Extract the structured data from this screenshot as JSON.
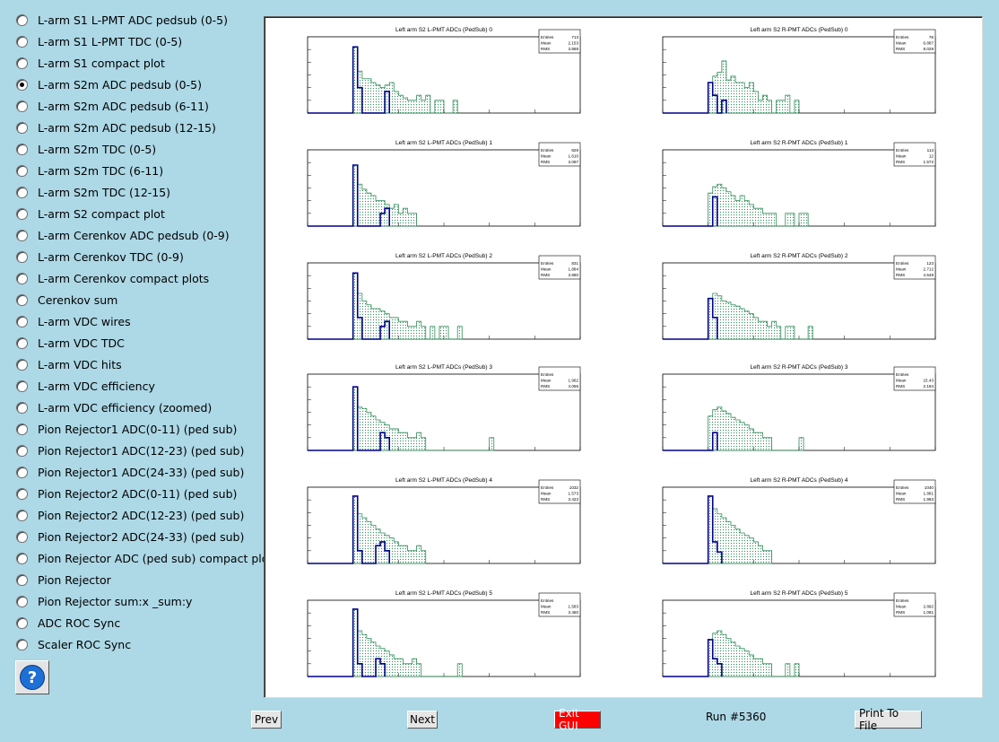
{
  "radio_options": [
    {
      "label": "L-arm S1 L-PMT ADC pedsub (0-5)",
      "checked": false
    },
    {
      "label": "L-arm S1 L-PMT TDC (0-5)",
      "checked": false
    },
    {
      "label": "L-arm S1 compact plot",
      "checked": false
    },
    {
      "label": "L-arm S2m ADC pedsub (0-5)",
      "checked": true
    },
    {
      "label": "L-arm S2m ADC pedsub (6-11)",
      "checked": false
    },
    {
      "label": "L-arm S2m ADC pedsub (12-15)",
      "checked": false
    },
    {
      "label": "L-arm S2m TDC (0-5)",
      "checked": false
    },
    {
      "label": "L-arm S2m TDC (6-11)",
      "checked": false
    },
    {
      "label": "L-arm S2m TDC (12-15)",
      "checked": false
    },
    {
      "label": "L-arm S2 compact plot",
      "checked": false
    },
    {
      "label": "L-arm Cerenkov ADC pedsub (0-9)",
      "checked": false
    },
    {
      "label": "L-arm Cerenkov TDC (0-9)",
      "checked": false
    },
    {
      "label": "L-arm Cerenkov compact plots",
      "checked": false
    },
    {
      "label": "Cerenkov sum",
      "checked": false
    },
    {
      "label": "L-arm VDC wires",
      "checked": false
    },
    {
      "label": "L-arm VDC TDC",
      "checked": false
    },
    {
      "label": "L-arm VDC hits",
      "checked": false
    },
    {
      "label": "L-arm VDC efficiency",
      "checked": false
    },
    {
      "label": "L-arm VDC efficiency (zoomed)",
      "checked": false
    },
    {
      "label": "Pion Rejector1 ADC(0-11) (ped sub)",
      "checked": false
    },
    {
      "label": "Pion Rejector1 ADC(12-23) (ped sub)",
      "checked": false
    },
    {
      "label": "Pion Rejector1 ADC(24-33) (ped sub)",
      "checked": false
    },
    {
      "label": "Pion Rejector2 ADC(0-11) (ped sub)",
      "checked": false
    },
    {
      "label": "Pion Rejector2 ADC(12-23) (ped sub)",
      "checked": false
    },
    {
      "label": "Pion Rejector2 ADC(24-33) (ped sub)",
      "checked": false
    },
    {
      "label": "Pion Rejector ADC (ped sub) compact plot",
      "checked": false
    },
    {
      "label": "Pion Rejector",
      "checked": false
    },
    {
      "label": "Pion Rejector sum:x _sum:y",
      "checked": false
    },
    {
      "label": "ADC ROC Sync",
      "checked": false
    },
    {
      "label": "Scaler ROC Sync",
      "checked": false
    }
  ],
  "help_button": {
    "glyph": "?",
    "icon": "help-icon"
  },
  "buttons": {
    "prev": "Prev",
    "next": "Next",
    "exit": "Exit GUI",
    "print": "Print To File"
  },
  "run_label": "Run #5360",
  "colors": {
    "background": "#add8e6",
    "exit_button": "#ff0000",
    "hist_filled": "#2e8b57",
    "hist_line": "#00008b"
  },
  "chart_data": [
    {
      "type": "bar",
      "title": "Left arm S2 L-PMT ADCs (PedSub) 0",
      "stats": {
        "Entries": "713",
        "Mean": "2.153",
        "RMS": "3.868"
      },
      "log_y": true,
      "filled": [
        0,
        0,
        0,
        0,
        0,
        0,
        0,
        0,
        0,
        0,
        5.2,
        3.3,
        2.7,
        2.7,
        2.4,
        2.2,
        2.0,
        2.2,
        2.4,
        1.7,
        1.4,
        1.2,
        1.0,
        1.0,
        1.4,
        1.0,
        1.4,
        0,
        1.0,
        1.0,
        0,
        0,
        1.0
      ],
      "outline": [
        0,
        0,
        0,
        0,
        0,
        0,
        0,
        0,
        0,
        0,
        5.2,
        2.0,
        0,
        0,
        0,
        0,
        0,
        1.7
      ]
    },
    {
      "type": "bar",
      "title": "Left arm S2 R-PMT ADCs (PedSub) 0",
      "stats": {
        "Entries": "78",
        "Mean": "6.887",
        "RMS": "8.029"
      },
      "log_y": true,
      "filled": [
        0,
        0,
        0,
        0,
        0,
        0,
        0,
        0,
        0,
        0,
        2.4,
        2.9,
        3.2,
        4.1,
        2.6,
        2.9,
        2.4,
        2.4,
        2.0,
        2.4,
        1.7,
        1.0,
        1.4,
        1.0,
        0,
        1.0,
        1.0,
        1.4,
        0,
        1.0
      ],
      "outline": [
        0,
        0,
        0,
        0,
        0,
        0,
        0,
        0,
        0,
        0,
        2.4,
        1.4,
        0,
        1.0
      ]
    },
    {
      "type": "bar",
      "title": "Left arm S2 L-PMT ADCs (PedSub) 1",
      "stats": {
        "Entries": "829",
        "Mean": "1.610",
        "RMS": "3.087"
      },
      "log_y": true,
      "filled": [
        0,
        0,
        0,
        0,
        0,
        0,
        0,
        0,
        0,
        0,
        4.8,
        3.3,
        2.9,
        2.6,
        2.4,
        2.0,
        2.0,
        1.7,
        1.4,
        1.7,
        1.0,
        1.4,
        1.0,
        1.0
      ],
      "outline": [
        0,
        0,
        0,
        0,
        0,
        0,
        0,
        0,
        0,
        0,
        4.8,
        0,
        0,
        0,
        0,
        0,
        1.0,
        1.4
      ]
    },
    {
      "type": "bar",
      "title": "Left arm S2 R-PMT ADCs (PedSub) 1",
      "stats": {
        "Entries": "113",
        "Mean": "12",
        "RMS": "1.572"
      },
      "log_y": true,
      "filled": [
        0,
        0,
        0,
        0,
        0,
        0,
        0,
        0,
        0,
        0,
        2.6,
        3.1,
        3.3,
        3.0,
        2.7,
        2.4,
        2.0,
        2.4,
        2.0,
        1.7,
        1.4,
        1.4,
        1.0,
        1.0,
        1.0,
        0,
        0,
        1.0,
        1.0,
        0,
        1.0,
        1.0
      ],
      "outline": [
        0,
        0,
        0,
        0,
        0,
        0,
        0,
        0,
        0,
        0,
        0,
        2.3
      ]
    },
    {
      "type": "bar",
      "title": "Left arm S2 L-PMT ADCs (PedSub) 2",
      "stats": {
        "Entries": "831",
        "Mean": "1.884",
        "RMS": "3.880"
      },
      "log_y": true,
      "filled": [
        0,
        0,
        0,
        0,
        0,
        0,
        0,
        0,
        0,
        0,
        5.2,
        3.6,
        3.0,
        2.7,
        2.4,
        2.4,
        2.2,
        2.0,
        1.7,
        1.7,
        1.4,
        1.4,
        1.0,
        1.0,
        1.4,
        1.0,
        0,
        1.0,
        0,
        1.0,
        1.0,
        0,
        0,
        1.0
      ],
      "outline": [
        0,
        0,
        0,
        0,
        0,
        0,
        0,
        0,
        0,
        0,
        5.2,
        1.7,
        0,
        0,
        0,
        0,
        1.0,
        1.4
      ]
    },
    {
      "type": "bar",
      "title": "Left arm S2 R-PMT ADCs (PedSub) 2",
      "stats": {
        "Entries": "123",
        "Mean": "2.712",
        "RMS": "4.548"
      },
      "log_y": true,
      "filled": [
        0,
        0,
        0,
        0,
        0,
        0,
        0,
        0,
        0,
        0,
        3.2,
        3.6,
        3.4,
        3.0,
        2.9,
        2.7,
        2.6,
        2.4,
        2.2,
        2.0,
        1.7,
        1.4,
        1.4,
        1.0,
        1.4,
        1.0,
        0,
        1.0,
        1.0,
        0,
        0,
        0,
        1.0
      ],
      "outline": [
        0,
        0,
        0,
        0,
        0,
        0,
        0,
        0,
        0,
        0,
        3.2,
        1.7
      ]
    },
    {
      "type": "bar",
      "title": "Left arm S2 L-PMT ADCs (PedSub) 3",
      "stats": {
        "Entries": "",
        "Mean": "1.962",
        "RMS": "4.056"
      },
      "log_y": true,
      "filled": [
        0,
        0,
        0,
        0,
        0,
        0,
        0,
        0,
        0,
        0,
        5.0,
        3.4,
        3.3,
        3.0,
        2.7,
        2.4,
        2.2,
        2.0,
        1.7,
        1.7,
        1.4,
        1.4,
        1.0,
        1.0,
        1.4,
        1.0,
        0,
        0,
        0,
        0,
        0,
        0,
        0,
        0,
        0,
        0,
        0,
        0,
        0,
        0,
        1.0
      ],
      "outline": [
        0,
        0,
        0,
        0,
        0,
        0,
        0,
        0,
        0,
        0,
        5.0,
        0,
        0,
        0,
        0,
        0,
        1.4,
        1.0
      ]
    },
    {
      "type": "bar",
      "title": "Left arm S2 R-PMT ADCs (PedSub) 3",
      "stats": {
        "Entries": "",
        "Mean": "15.43",
        "RMS": "2.194"
      },
      "log_y": true,
      "filled": [
        0,
        0,
        0,
        0,
        0,
        0,
        0,
        0,
        0,
        0,
        2.7,
        3.2,
        3.4,
        3.1,
        2.9,
        2.6,
        2.4,
        2.2,
        2.0,
        1.7,
        1.4,
        1.4,
        1.0,
        1.0,
        0,
        0,
        0,
        0,
        0,
        0,
        1.0
      ],
      "outline": [
        0,
        0,
        0,
        0,
        0,
        0,
        0,
        0,
        0,
        0,
        0,
        1.4
      ]
    },
    {
      "type": "bar",
      "title": "Left arm S2 L-PMT ADCs (PedSub) 4",
      "stats": {
        "Entries": "1032",
        "Mean": "1.573",
        "RMS": "3.423"
      },
      "log_y": true,
      "filled": [
        0,
        0,
        0,
        0,
        0,
        0,
        0,
        0,
        0,
        0,
        5.3,
        3.9,
        3.6,
        3.3,
        3.0,
        2.7,
        2.4,
        2.2,
        2.0,
        1.7,
        1.4,
        1.4,
        1.0,
        1.0,
        1.4,
        1.0
      ],
      "outline": [
        0,
        0,
        0,
        0,
        0,
        0,
        0,
        0,
        0,
        0,
        5.3,
        1.0,
        0,
        0,
        0,
        1.4,
        1.7,
        1.0
      ]
    },
    {
      "type": "bar",
      "title": "Left arm S2 R-PMT ADCs (PedSub) 4",
      "stats": {
        "Entries": "1040",
        "Mean": "1.881",
        "RMS": "1.983"
      },
      "log_y": true,
      "filled": [
        0,
        0,
        0,
        0,
        0,
        0,
        0,
        0,
        0,
        0,
        5.3,
        4.3,
        3.9,
        3.6,
        3.3,
        3.0,
        2.7,
        2.4,
        2.2,
        2.0,
        1.7,
        1.4,
        1.0,
        1.0
      ],
      "outline": [
        0,
        0,
        0,
        0,
        0,
        0,
        0,
        0,
        0,
        0,
        5.3,
        1.7,
        0.9
      ]
    },
    {
      "type": "bar",
      "title": "Left arm S2 L-PMT ADCs (PedSub) 5",
      "stats": {
        "Entries": "",
        "Mean": "1.583",
        "RMS": "3.450"
      },
      "log_y": true,
      "filled": [
        0,
        0,
        0,
        0,
        0,
        0,
        0,
        0,
        0,
        0,
        5.3,
        3.6,
        3.3,
        3.0,
        2.7,
        2.4,
        2.2,
        2.0,
        1.7,
        1.4,
        1.4,
        1.0,
        1.0,
        1.4,
        1.0,
        0,
        0,
        0,
        0,
        0,
        0,
        0,
        0,
        1.0
      ],
      "outline": [
        0,
        0,
        0,
        0,
        0,
        0,
        0,
        0,
        0,
        0,
        5.3,
        1.0,
        0,
        0,
        0,
        1.4,
        1.0
      ]
    },
    {
      "type": "bar",
      "title": "Left arm S2 R-PMT ADCs (PedSub) 5",
      "stats": {
        "Entries": "",
        "Mean": "2.892",
        "RMS": "1.081"
      },
      "log_y": true,
      "filled": [
        0,
        0,
        0,
        0,
        0,
        0,
        0,
        0,
        0,
        0,
        2.9,
        3.4,
        3.6,
        3.3,
        3.0,
        2.7,
        2.4,
        2.2,
        2.0,
        1.7,
        1.4,
        1.4,
        1.0,
        1.0,
        0,
        0,
        0,
        1.0,
        0,
        1.0
      ],
      "outline": [
        0,
        0,
        0,
        0,
        0,
        0,
        0,
        0,
        0,
        0,
        2.9,
        1.4,
        1.0
      ]
    }
  ]
}
